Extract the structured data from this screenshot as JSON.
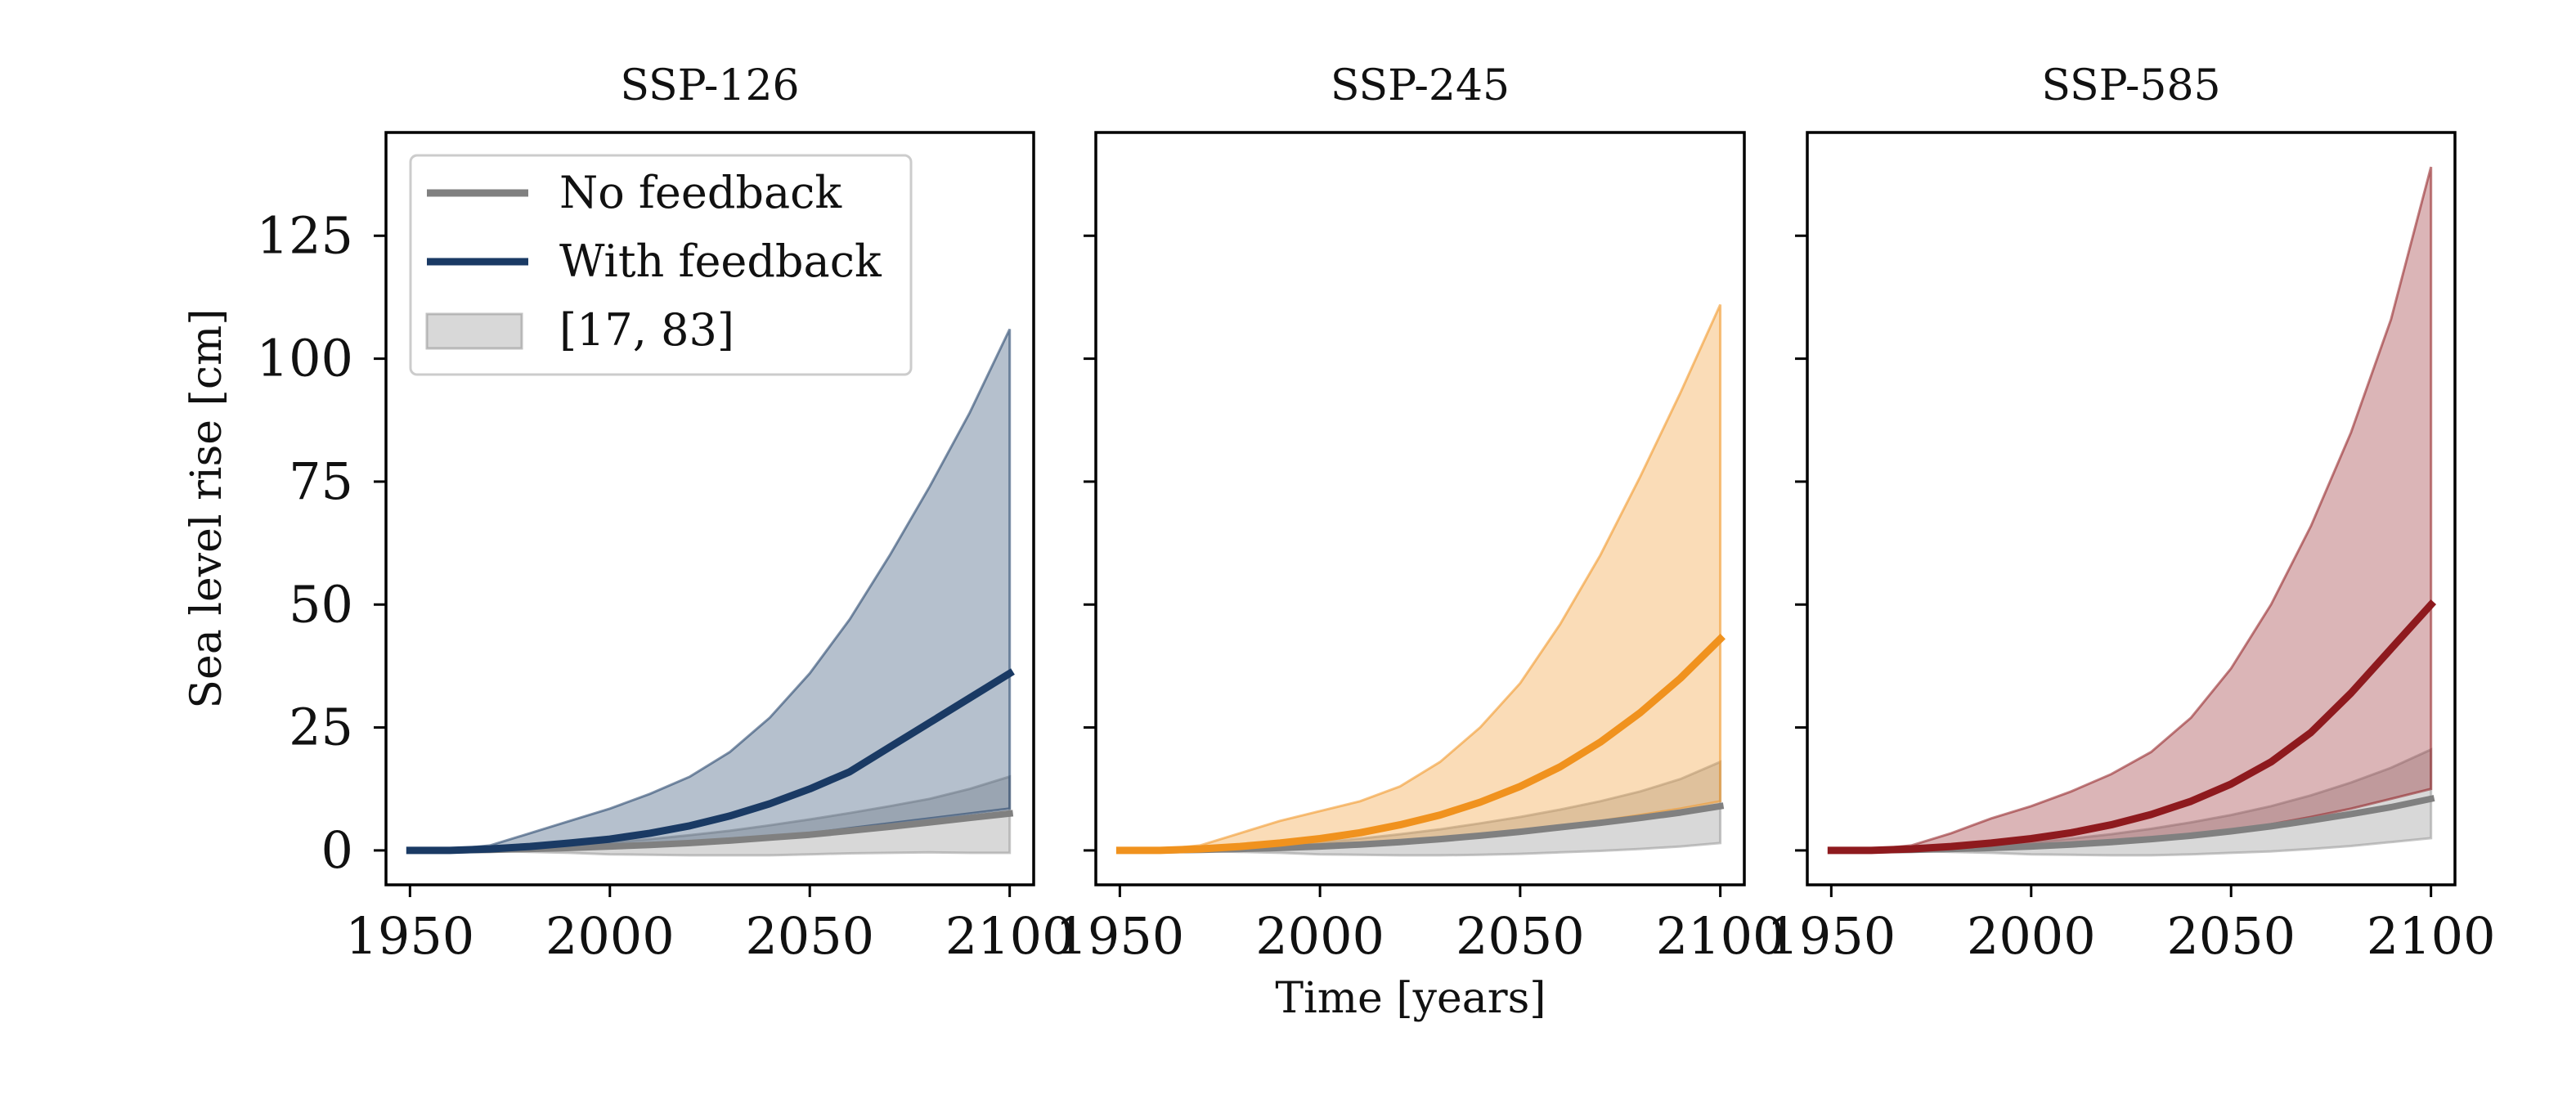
{
  "chart_data": [
    {
      "type": "line",
      "title": "SSP-126",
      "xlabel": "",
      "ylabel": "Sea level rise [cm]",
      "xlim": [
        1944,
        2106
      ],
      "ylim": [
        -7,
        146
      ],
      "xticks": [
        1950,
        2000,
        2050,
        2100
      ],
      "yticks": [
        0,
        25,
        50,
        75,
        100,
        125
      ],
      "x": [
        1950,
        1960,
        1970,
        1980,
        1990,
        2000,
        2010,
        2020,
        2030,
        2040,
        2050,
        2060,
        2070,
        2080,
        2090,
        2100
      ],
      "series": [
        {
          "name": "No feedback",
          "color": "#808080",
          "values": [
            0,
            0,
            0.1,
            0.3,
            0.5,
            0.8,
            1.1,
            1.5,
            2.0,
            2.6,
            3.2,
            4.0,
            4.8,
            5.7,
            6.6,
            7.5
          ]
        },
        {
          "name": "With feedback",
          "color": "#1a3a64",
          "values": [
            0,
            0,
            0.3,
            0.8,
            1.5,
            2.3,
            3.5,
            5.0,
            7.0,
            9.5,
            12.5,
            16.0,
            21.0,
            26.0,
            31.0,
            36.0
          ]
        }
      ],
      "bands": [
        {
          "name": "[17, 83]",
          "color": "#1a3a64",
          "lower": [
            0,
            0,
            0.1,
            0.2,
            0.4,
            0.7,
            1.0,
            1.4,
            2.0,
            2.7,
            3.5,
            4.5,
            5.5,
            6.5,
            7.5,
            8.5
          ],
          "upper": [
            0,
            0.2,
            1.0,
            3.5,
            6.0,
            8.5,
            11.5,
            15.0,
            20.0,
            27.0,
            36.0,
            47.0,
            60.0,
            74.0,
            89.0,
            106.0
          ]
        },
        {
          "name": "[17, 83]",
          "color": "#999999",
          "lower": [
            0,
            0,
            -0.1,
            -0.3,
            -0.5,
            -0.8,
            -0.9,
            -1.0,
            -1.0,
            -1.0,
            -0.8,
            -0.6,
            -0.5,
            -0.4,
            -0.5,
            -0.5
          ],
          "upper": [
            0,
            0,
            0.2,
            0.6,
            1.0,
            1.6,
            2.3,
            3.1,
            4.0,
            5.1,
            6.3,
            7.6,
            9.0,
            10.5,
            12.5,
            15.0
          ]
        }
      ],
      "legend": {
        "position": "upper-left",
        "entries": [
          {
            "label": "No feedback",
            "kind": "line",
            "color": "#808080"
          },
          {
            "label": "With feedback",
            "kind": "line",
            "color": "#1a3a64"
          },
          {
            "label": "[17, 83]",
            "kind": "patch",
            "color": "#999999"
          }
        ]
      }
    },
    {
      "type": "line",
      "title": "SSP-245",
      "xlabel": "Time [years]",
      "ylabel": "",
      "xlim": [
        1944,
        2106
      ],
      "ylim": [
        -7,
        146
      ],
      "xticks": [
        1950,
        2000,
        2050,
        2100
      ],
      "yticks": [
        0,
        25,
        50,
        75,
        100,
        125
      ],
      "x": [
        1950,
        1960,
        1970,
        1980,
        1990,
        2000,
        2010,
        2020,
        2030,
        2040,
        2050,
        2060,
        2070,
        2080,
        2090,
        2100
      ],
      "series": [
        {
          "name": "No feedback",
          "color": "#808080",
          "values": [
            0,
            0,
            0.1,
            0.3,
            0.5,
            0.8,
            1.2,
            1.7,
            2.3,
            3.0,
            3.8,
            4.7,
            5.6,
            6.6,
            7.7,
            9.0
          ]
        },
        {
          "name": "With feedback",
          "color": "#f0921e",
          "values": [
            0,
            0,
            0.3,
            0.8,
            1.5,
            2.4,
            3.6,
            5.2,
            7.2,
            9.8,
            13.0,
            17.0,
            22.0,
            28.0,
            35.0,
            43.0
          ]
        }
      ],
      "bands": [
        {
          "name": "[17, 83]",
          "color": "#f0921e",
          "lower": [
            0,
            0,
            0.1,
            0.2,
            0.4,
            0.7,
            1.0,
            1.5,
            2.1,
            2.9,
            3.8,
            4.9,
            6.0,
            7.2,
            8.5,
            10.0
          ],
          "upper": [
            0,
            0.2,
            1.0,
            3.5,
            6.0,
            8.0,
            10.0,
            13.0,
            18.0,
            25.0,
            34.0,
            46.0,
            60.0,
            76.0,
            93.0,
            111.0
          ]
        },
        {
          "name": "[17, 83]",
          "color": "#999999",
          "lower": [
            0,
            0,
            -0.1,
            -0.3,
            -0.5,
            -0.8,
            -0.9,
            -1.0,
            -1.0,
            -0.9,
            -0.7,
            -0.4,
            -0.1,
            0.3,
            0.8,
            1.5
          ],
          "upper": [
            0,
            0,
            0.2,
            0.6,
            1.0,
            1.6,
            2.4,
            3.3,
            4.3,
            5.5,
            6.8,
            8.3,
            10.0,
            12.0,
            14.5,
            18.0
          ]
        }
      ]
    },
    {
      "type": "line",
      "title": "SSP-585",
      "xlabel": "",
      "ylabel": "",
      "xlim": [
        1944,
        2106
      ],
      "ylim": [
        -7,
        146
      ],
      "xticks": [
        1950,
        2000,
        2050,
        2100
      ],
      "yticks": [
        0,
        25,
        50,
        75,
        100,
        125
      ],
      "x": [
        1950,
        1960,
        1970,
        1980,
        1990,
        2000,
        2010,
        2020,
        2030,
        2040,
        2050,
        2060,
        2070,
        2080,
        2090,
        2100
      ],
      "series": [
        {
          "name": "No feedback",
          "color": "#808080",
          "values": [
            0,
            0,
            0.1,
            0.3,
            0.5,
            0.8,
            1.2,
            1.7,
            2.3,
            3.0,
            3.9,
            4.9,
            6.1,
            7.4,
            8.8,
            10.5
          ]
        },
        {
          "name": "With feedback",
          "color": "#8e1a1e",
          "values": [
            0,
            0,
            0.3,
            0.8,
            1.5,
            2.4,
            3.6,
            5.2,
            7.3,
            10.0,
            13.5,
            18.0,
            24.0,
            32.0,
            41.0,
            50.0
          ]
        }
      ],
      "bands": [
        {
          "name": "[17, 83]",
          "color": "#8e1a1e",
          "lower": [
            0,
            0,
            0.1,
            0.2,
            0.4,
            0.7,
            1.0,
            1.5,
            2.1,
            2.9,
            4.0,
            5.3,
            6.8,
            8.5,
            10.5,
            12.5
          ],
          "upper": [
            0,
            0.2,
            1.0,
            3.5,
            6.5,
            9.0,
            12.0,
            15.5,
            20.0,
            27.0,
            37.0,
            50.0,
            66.0,
            85.0,
            108.0,
            139.0
          ]
        },
        {
          "name": "[17, 83]",
          "color": "#999999",
          "lower": [
            0,
            0,
            -0.1,
            -0.3,
            -0.5,
            -0.8,
            -0.9,
            -1.0,
            -1.0,
            -0.8,
            -0.5,
            -0.2,
            0.3,
            0.9,
            1.7,
            2.5
          ],
          "upper": [
            0,
            0,
            0.2,
            0.6,
            1.0,
            1.6,
            2.4,
            3.3,
            4.4,
            5.7,
            7.2,
            9.0,
            11.2,
            13.8,
            16.8,
            20.5
          ]
        }
      ]
    }
  ]
}
